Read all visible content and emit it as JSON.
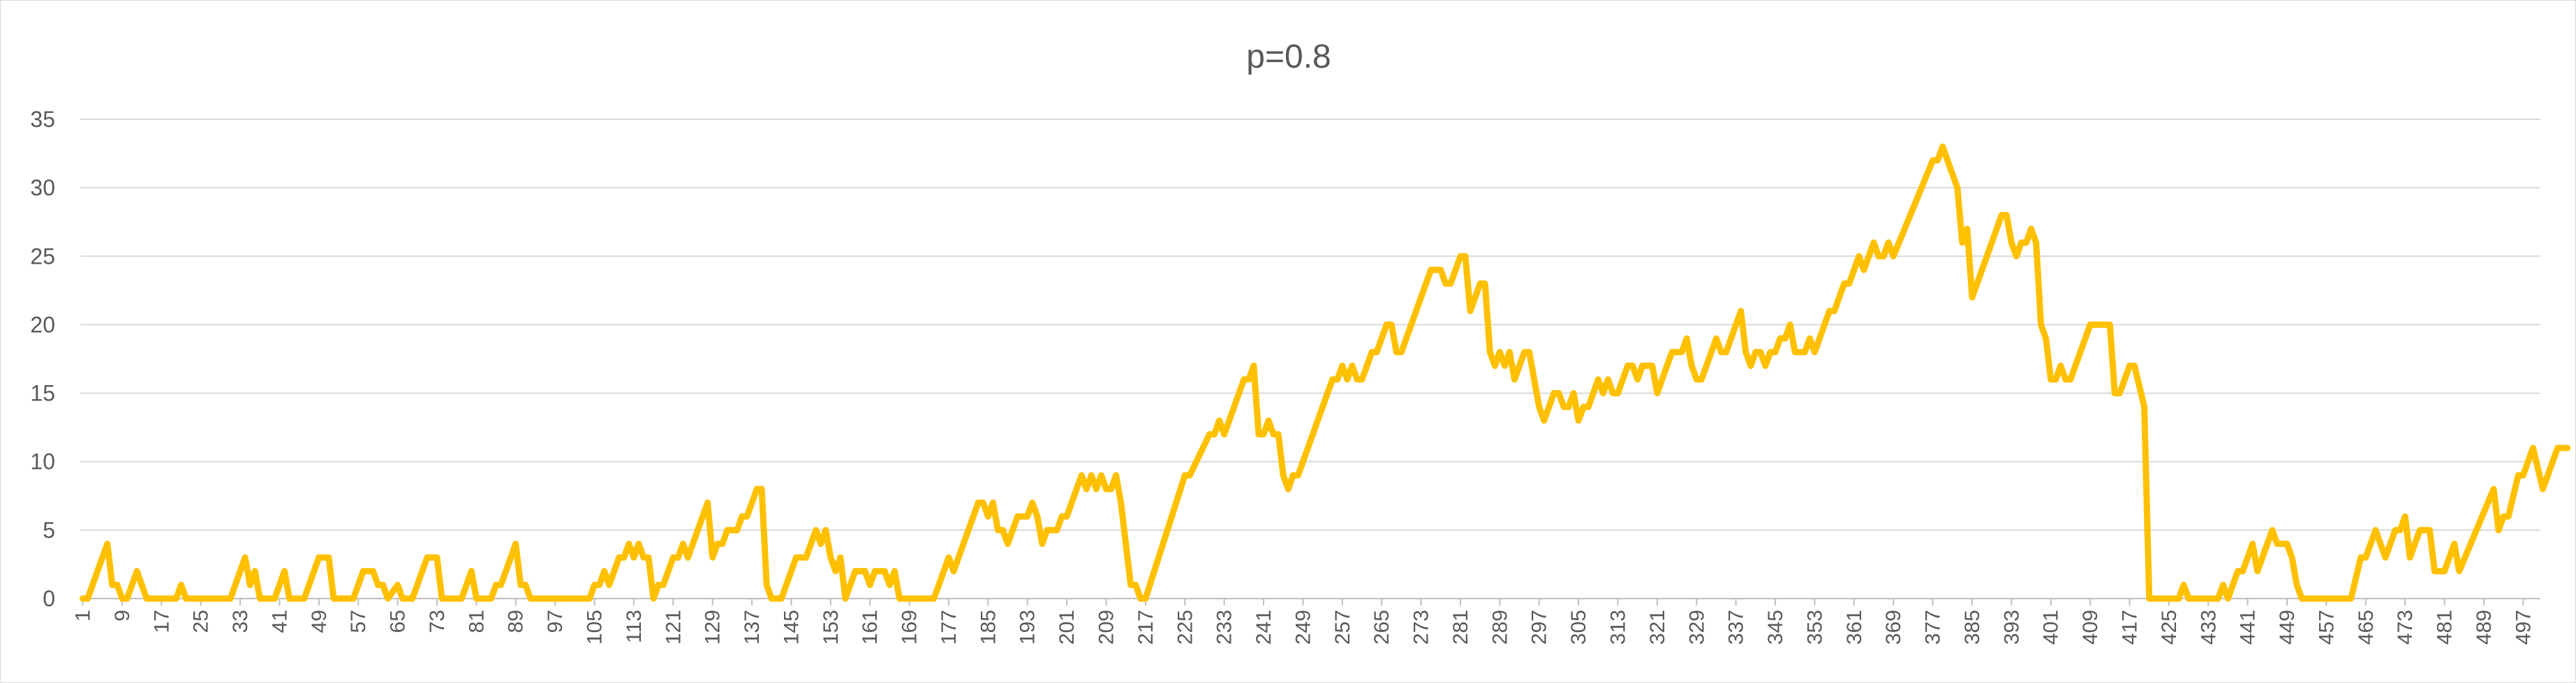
{
  "chart_data": {
    "type": "line",
    "title": "p=0.8",
    "xlabel": "",
    "ylabel": "",
    "ylim": [
      0,
      35
    ],
    "yticks": [
      "0",
      "5",
      "10",
      "15",
      "20",
      "25",
      "30",
      "35"
    ],
    "x_count": 500,
    "xtick_labels": [
      "1",
      "9",
      "17",
      "25",
      "33",
      "41",
      "49",
      "57",
      "65",
      "73",
      "81",
      "89",
      "97",
      "105",
      "113",
      "121",
      "129",
      "137",
      "145",
      "153",
      "161",
      "169",
      "177",
      "185",
      "193",
      "201",
      "209",
      "217",
      "225",
      "233",
      "241",
      "249",
      "257",
      "265",
      "273",
      "281",
      "289",
      "297",
      "305",
      "313",
      "321",
      "329",
      "337",
      "345",
      "353",
      "361",
      "369",
      "377",
      "385",
      "393",
      "401",
      "409",
      "417",
      "425",
      "433",
      "441",
      "449",
      "457",
      "465",
      "473",
      "481",
      "489",
      "497"
    ],
    "grid": true,
    "legend": "none",
    "series": [
      {
        "color": "#FFC000",
        "anchors": [
          [
            1,
            0
          ],
          [
            2,
            0
          ],
          [
            5,
            3
          ],
          [
            6,
            4
          ],
          [
            7,
            1
          ],
          [
            8,
            1
          ],
          [
            9,
            0
          ],
          [
            10,
            0
          ],
          [
            12,
            2
          ],
          [
            14,
            0
          ],
          [
            17,
            0
          ],
          [
            20,
            0
          ],
          [
            21,
            1
          ],
          [
            22,
            0
          ],
          [
            25,
            0
          ],
          [
            30,
            0
          ],
          [
            31,
            0
          ],
          [
            33,
            2
          ],
          [
            34,
            3
          ],
          [
            35,
            1
          ],
          [
            36,
            2
          ],
          [
            37,
            0
          ],
          [
            40,
            0
          ],
          [
            42,
            2
          ],
          [
            43,
            0
          ],
          [
            46,
            0
          ],
          [
            48,
            2
          ],
          [
            49,
            3
          ],
          [
            51,
            3
          ],
          [
            52,
            0
          ],
          [
            56,
            0
          ],
          [
            58,
            2
          ],
          [
            60,
            2
          ],
          [
            61,
            1
          ],
          [
            62,
            1
          ],
          [
            63,
            0
          ],
          [
            65,
            1
          ],
          [
            66,
            0
          ],
          [
            68,
            0
          ],
          [
            70,
            2
          ],
          [
            71,
            3
          ],
          [
            73,
            3
          ],
          [
            74,
            0
          ],
          [
            78,
            0
          ],
          [
            80,
            2
          ],
          [
            81,
            0
          ],
          [
            84,
            0
          ],
          [
            85,
            1
          ],
          [
            86,
            1
          ],
          [
            89,
            4
          ],
          [
            90,
            1
          ],
          [
            91,
            1
          ],
          [
            92,
            0
          ],
          [
            104,
            0
          ],
          [
            105,
            1
          ],
          [
            106,
            1
          ],
          [
            107,
            2
          ],
          [
            108,
            1
          ],
          [
            110,
            3
          ],
          [
            111,
            3
          ],
          [
            112,
            4
          ],
          [
            113,
            3
          ],
          [
            114,
            4
          ],
          [
            115,
            3
          ],
          [
            116,
            3
          ],
          [
            117,
            0
          ],
          [
            118,
            1
          ],
          [
            119,
            1
          ],
          [
            120,
            2
          ],
          [
            121,
            3
          ],
          [
            122,
            3
          ],
          [
            123,
            4
          ],
          [
            124,
            3
          ],
          [
            128,
            7
          ],
          [
            129,
            3
          ],
          [
            130,
            4
          ],
          [
            131,
            4
          ],
          [
            132,
            5
          ],
          [
            134,
            5
          ],
          [
            135,
            6
          ],
          [
            136,
            6
          ],
          [
            137,
            7
          ],
          [
            138,
            8
          ],
          [
            139,
            8
          ],
          [
            140,
            1
          ],
          [
            141,
            0
          ],
          [
            143,
            0
          ],
          [
            146,
            3
          ],
          [
            148,
            3
          ],
          [
            150,
            5
          ],
          [
            151,
            4
          ],
          [
            152,
            5
          ],
          [
            153,
            3
          ],
          [
            154,
            2
          ],
          [
            155,
            3
          ],
          [
            156,
            0
          ],
          [
            157,
            1
          ],
          [
            158,
            2
          ],
          [
            160,
            2
          ],
          [
            161,
            1
          ],
          [
            162,
            2
          ],
          [
            164,
            2
          ],
          [
            165,
            1
          ],
          [
            166,
            2
          ],
          [
            167,
            0
          ],
          [
            174,
            0
          ],
          [
            177,
            3
          ],
          [
            178,
            2
          ],
          [
            180,
            4
          ],
          [
            183,
            7
          ],
          [
            184,
            7
          ],
          [
            185,
            6
          ],
          [
            186,
            7
          ],
          [
            187,
            5
          ],
          [
            188,
            5
          ],
          [
            189,
            4
          ],
          [
            190,
            5
          ],
          [
            191,
            6
          ],
          [
            193,
            6
          ],
          [
            194,
            7
          ],
          [
            195,
            6
          ],
          [
            196,
            4
          ],
          [
            197,
            5
          ],
          [
            199,
            5
          ],
          [
            200,
            6
          ],
          [
            201,
            6
          ],
          [
            203,
            8
          ],
          [
            204,
            9
          ],
          [
            205,
            8
          ],
          [
            206,
            9
          ],
          [
            207,
            8
          ],
          [
            208,
            9
          ],
          [
            209,
            8
          ],
          [
            210,
            8
          ],
          [
            211,
            9
          ],
          [
            212,
            7
          ],
          [
            213,
            4
          ],
          [
            214,
            1
          ],
          [
            215,
            1
          ],
          [
            216,
            0
          ],
          [
            217,
            0
          ],
          [
            225,
            9
          ],
          [
            226,
            9
          ],
          [
            230,
            12
          ],
          [
            231,
            12
          ],
          [
            232,
            13
          ],
          [
            233,
            12
          ],
          [
            237,
            16
          ],
          [
            238,
            16
          ],
          [
            239,
            17
          ],
          [
            240,
            12
          ],
          [
            241,
            12
          ],
          [
            242,
            13
          ],
          [
            243,
            12
          ],
          [
            244,
            12
          ],
          [
            245,
            9
          ],
          [
            246,
            8
          ],
          [
            247,
            9
          ],
          [
            248,
            9
          ],
          [
            255,
            16
          ],
          [
            256,
            16
          ],
          [
            257,
            17
          ],
          [
            258,
            16
          ],
          [
            259,
            17
          ],
          [
            260,
            16
          ],
          [
            261,
            16
          ],
          [
            263,
            18
          ],
          [
            264,
            18
          ],
          [
            266,
            20
          ],
          [
            267,
            20
          ],
          [
            268,
            18
          ],
          [
            269,
            18
          ],
          [
            275,
            24
          ],
          [
            277,
            24
          ],
          [
            278,
            23
          ],
          [
            279,
            23
          ],
          [
            281,
            25
          ],
          [
            282,
            25
          ],
          [
            283,
            21
          ],
          [
            284,
            22
          ],
          [
            285,
            23
          ],
          [
            286,
            23
          ],
          [
            287,
            18
          ],
          [
            288,
            17
          ],
          [
            289,
            18
          ],
          [
            290,
            17
          ],
          [
            291,
            18
          ],
          [
            292,
            16
          ],
          [
            293,
            17
          ],
          [
            294,
            18
          ],
          [
            295,
            18
          ],
          [
            297,
            14
          ],
          [
            298,
            13
          ],
          [
            300,
            15
          ],
          [
            301,
            15
          ],
          [
            302,
            14
          ],
          [
            303,
            14
          ],
          [
            304,
            15
          ],
          [
            305,
            13
          ],
          [
            306,
            14
          ],
          [
            307,
            14
          ],
          [
            309,
            16
          ],
          [
            310,
            15
          ],
          [
            311,
            16
          ],
          [
            312,
            15
          ],
          [
            313,
            15
          ],
          [
            315,
            17
          ],
          [
            316,
            17
          ],
          [
            317,
            16
          ],
          [
            318,
            17
          ],
          [
            320,
            17
          ],
          [
            321,
            15
          ],
          [
            322,
            16
          ],
          [
            324,
            18
          ],
          [
            326,
            18
          ],
          [
            327,
            19
          ],
          [
            328,
            17
          ],
          [
            329,
            16
          ],
          [
            330,
            16
          ],
          [
            333,
            19
          ],
          [
            334,
            18
          ],
          [
            335,
            18
          ],
          [
            338,
            21
          ],
          [
            339,
            18
          ],
          [
            340,
            17
          ],
          [
            341,
            18
          ],
          [
            342,
            18
          ],
          [
            343,
            17
          ],
          [
            344,
            18
          ],
          [
            345,
            18
          ],
          [
            346,
            19
          ],
          [
            347,
            19
          ],
          [
            348,
            20
          ],
          [
            349,
            18
          ],
          [
            350,
            18
          ],
          [
            351,
            18
          ],
          [
            352,
            19
          ],
          [
            353,
            18
          ],
          [
            356,
            21
          ],
          [
            357,
            21
          ],
          [
            359,
            23
          ],
          [
            360,
            23
          ],
          [
            361,
            24
          ],
          [
            362,
            25
          ],
          [
            363,
            24
          ],
          [
            365,
            26
          ],
          [
            366,
            25
          ],
          [
            367,
            25
          ],
          [
            368,
            26
          ],
          [
            369,
            25
          ],
          [
            377,
            32
          ],
          [
            378,
            32
          ],
          [
            379,
            33
          ],
          [
            382,
            30
          ],
          [
            383,
            26
          ],
          [
            384,
            27
          ],
          [
            385,
            22
          ],
          [
            391,
            28
          ],
          [
            392,
            28
          ],
          [
            393,
            26
          ],
          [
            394,
            25
          ],
          [
            395,
            26
          ],
          [
            396,
            26
          ],
          [
            397,
            27
          ],
          [
            398,
            26
          ],
          [
            399,
            20
          ],
          [
            400,
            19
          ],
          [
            401,
            16
          ],
          [
            402,
            16
          ],
          [
            403,
            17
          ],
          [
            404,
            16
          ],
          [
            405,
            16
          ],
          [
            409,
            20
          ],
          [
            413,
            20
          ],
          [
            414,
            15
          ],
          [
            415,
            15
          ],
          [
            417,
            17
          ],
          [
            418,
            17
          ],
          [
            420,
            14
          ],
          [
            421,
            0
          ],
          [
            427,
            0
          ],
          [
            428,
            1
          ],
          [
            429,
            0
          ],
          [
            435,
            0
          ],
          [
            436,
            1
          ],
          [
            437,
            0
          ],
          [
            438,
            1
          ],
          [
            439,
            2
          ],
          [
            440,
            2
          ],
          [
            442,
            4
          ],
          [
            443,
            2
          ],
          [
            446,
            5
          ],
          [
            447,
            4
          ],
          [
            449,
            4
          ],
          [
            450,
            3
          ],
          [
            451,
            1
          ],
          [
            452,
            0
          ],
          [
            462,
            0
          ],
          [
            464,
            3
          ],
          [
            465,
            3
          ],
          [
            467,
            5
          ],
          [
            469,
            3
          ],
          [
            471,
            5
          ],
          [
            472,
            5
          ],
          [
            473,
            6
          ],
          [
            474,
            3
          ],
          [
            476,
            5
          ],
          [
            478,
            5
          ],
          [
            479,
            2
          ],
          [
            481,
            2
          ],
          [
            483,
            4
          ],
          [
            484,
            2
          ],
          [
            491,
            8
          ],
          [
            492,
            5
          ],
          [
            493,
            6
          ],
          [
            494,
            6
          ],
          [
            496,
            9
          ],
          [
            497,
            9
          ],
          [
            499,
            11
          ],
          [
            501,
            8
          ],
          [
            503,
            10
          ],
          [
            504,
            11
          ],
          [
            506,
            11
          ]
        ]
      }
    ]
  }
}
